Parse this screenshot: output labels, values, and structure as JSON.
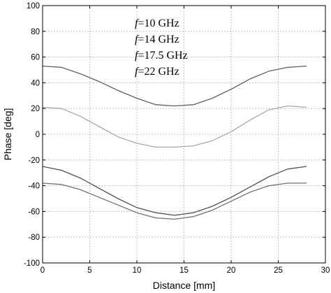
{
  "chart_data": {
    "type": "line",
    "title": "",
    "xlabel": "Distance [mm]",
    "ylabel": "Phase [deg]",
    "xlim": [
      0,
      30
    ],
    "ylim": [
      -100,
      100
    ],
    "xticks": [
      "0",
      "5",
      "10",
      "15",
      "20",
      "25",
      "30"
    ],
    "yticks": [
      "100",
      "80",
      "60",
      "40",
      "20",
      "0",
      "-20",
      "-40",
      "-60",
      "-80",
      "-100"
    ],
    "grid": true,
    "legend_position": "top-center",
    "legend_entries": [
      {
        "f": "f",
        "rest": "=10    GHz"
      },
      {
        "f": "f",
        "rest": "=14    GHz"
      },
      {
        "f": "f",
        "rest": "=17.5 GHz"
      },
      {
        "f": "f",
        "rest": "=22    GHz"
      }
    ],
    "series": [
      {
        "color": "#606060",
        "x": [
          0,
          2,
          4,
          6,
          8,
          10,
          12,
          14,
          16,
          18,
          20,
          22,
          24,
          26,
          28
        ],
        "y": [
          53,
          52,
          47,
          41,
          34,
          28,
          23,
          22,
          23,
          28,
          35,
          43,
          49,
          52,
          53
        ]
      },
      {
        "color": "#a8a8a8",
        "x": [
          0,
          2,
          4,
          6,
          8,
          10,
          12,
          14,
          16,
          18,
          20,
          22,
          24,
          26,
          28
        ],
        "y": [
          21,
          20,
          14,
          6,
          -2,
          -7,
          -10,
          -10,
          -9,
          -5,
          2,
          11,
          19,
          22,
          21
        ]
      },
      {
        "color": "#505050",
        "x": [
          0,
          2,
          4,
          6,
          8,
          10,
          12,
          14,
          16,
          18,
          20,
          22,
          24,
          26,
          28
        ],
        "y": [
          -25,
          -28,
          -34,
          -42,
          -50,
          -57,
          -61,
          -63,
          -61,
          -56,
          -49,
          -41,
          -33,
          -27,
          -25
        ]
      },
      {
        "color": "#707070",
        "x": [
          0,
          2,
          4,
          6,
          8,
          10,
          12,
          14,
          16,
          18,
          20,
          22,
          24,
          26,
          28
        ],
        "y": [
          -38,
          -39,
          -43,
          -49,
          -55,
          -61,
          -65,
          -66,
          -64,
          -59,
          -52,
          -45,
          -40,
          -38,
          -38
        ]
      }
    ]
  }
}
